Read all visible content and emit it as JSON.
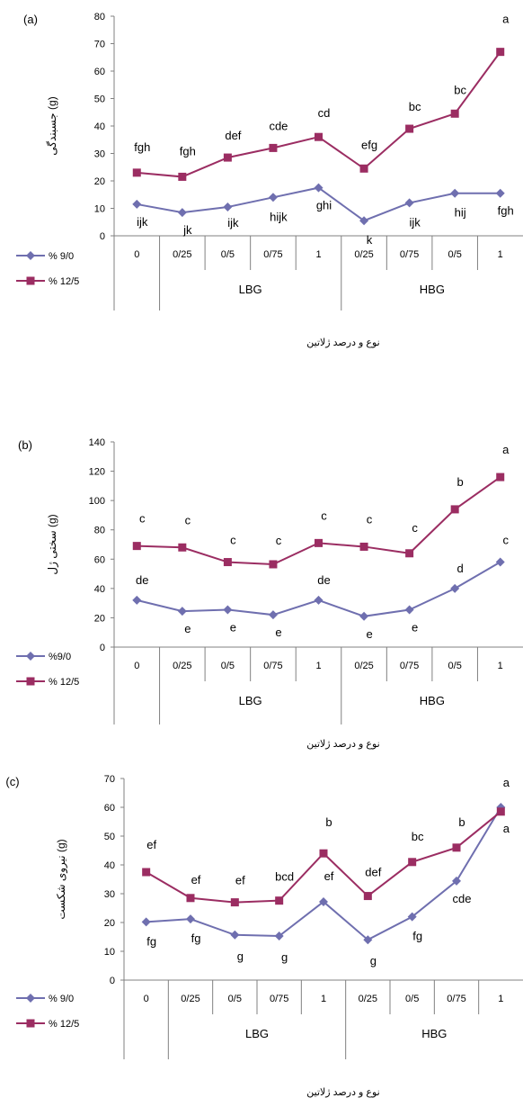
{
  "chart_data": [
    {
      "type": "line",
      "panel_label": "(a)",
      "ylabel": "جسبندگی (g)",
      "xlabel": "نوع و درصد ژلاتین",
      "ylim": [
        0,
        80
      ],
      "yticks": [
        0,
        10,
        20,
        30,
        40,
        50,
        60,
        70,
        80
      ],
      "categories": [
        "0",
        "0/25",
        "0/5",
        "0/75",
        "1",
        "0/25",
        "0/75",
        "0/5",
        "1"
      ],
      "groups": [
        {
          "label": "LBG",
          "start": 1,
          "end": 4
        },
        {
          "label": "HBG",
          "start": 5,
          "end": 8
        }
      ],
      "series": [
        {
          "name": "% 9/0",
          "color": "#6F6FAF",
          "marker": "diamond",
          "values": [
            11.5,
            8.5,
            10.5,
            14,
            17.5,
            5.5,
            12,
            15.5,
            15.5
          ],
          "labels": [
            "ijk",
            "jk",
            "ijk",
            "hijk",
            "ghi",
            "k",
            "ijk",
            "hij",
            "fgh"
          ]
        },
        {
          "name": "% 12/5",
          "color": "#9B2D62",
          "marker": "square",
          "values": [
            23,
            21.5,
            28.5,
            32,
            36,
            24.5,
            39,
            44.5,
            67
          ],
          "labels": [
            "fgh",
            "fgh",
            "def",
            "cde",
            "cd",
            "efg",
            "bc",
            "bc",
            "a"
          ]
        }
      ],
      "legend_position": "left"
    },
    {
      "type": "line",
      "panel_label": "(b)",
      "ylabel": "سختی ژل (g)",
      "xlabel": "نوع و درصد ژلاتین",
      "ylim": [
        0,
        140
      ],
      "yticks": [
        0,
        20,
        40,
        60,
        80,
        100,
        120,
        140
      ],
      "categories": [
        "0",
        "0/25",
        "0/5",
        "0/75",
        "1",
        "0/25",
        "0/75",
        "0/5",
        "1"
      ],
      "groups": [
        {
          "label": "LBG",
          "start": 1,
          "end": 4
        },
        {
          "label": "HBG",
          "start": 5,
          "end": 8
        }
      ],
      "series": [
        {
          "name": "%9/0",
          "color": "#6F6FAF",
          "marker": "diamond",
          "values": [
            32,
            24.5,
            25.5,
            22,
            32,
            21,
            25.5,
            40,
            58
          ],
          "labels": [
            "de",
            "e",
            "e",
            "e",
            "de",
            "e",
            "e",
            "d",
            "c"
          ]
        },
        {
          "name": "% 12/5",
          "color": "#9B2D62",
          "marker": "square",
          "values": [
            69,
            68,
            58,
            56.5,
            71,
            68.5,
            64,
            94,
            116
          ],
          "labels": [
            "c",
            "c",
            "c",
            "c",
            "c",
            "c",
            "c",
            "b",
            "a"
          ]
        }
      ],
      "legend_position": "left"
    },
    {
      "type": "line",
      "panel_label": "(c)",
      "ylabel": "نیروی شکست (g)",
      "xlabel": "نوع و درصد ژلاتین",
      "ylim": [
        0,
        70
      ],
      "yticks": [
        0,
        10,
        20,
        30,
        40,
        50,
        60,
        70
      ],
      "categories": [
        "0",
        "0/25",
        "0/5",
        "0/75",
        "1",
        "0/25",
        "0/5",
        "0/75",
        "1"
      ],
      "groups": [
        {
          "label": "LBG",
          "start": 1,
          "end": 4
        },
        {
          "label": "HBG",
          "start": 5,
          "end": 8
        }
      ],
      "series": [
        {
          "name": "% 9/0",
          "color": "#6F6FAF",
          "marker": "diamond",
          "values": [
            20.2,
            21.2,
            15.7,
            15.3,
            27.2,
            14,
            22,
            34.4,
            60
          ],
          "labels": [
            "fg",
            "fg",
            "g",
            "g",
            "ef",
            "g",
            "fg",
            "cde",
            "a"
          ]
        },
        {
          "name": "% 12/5",
          "color": "#9B2D62",
          "marker": "square",
          "values": [
            37.5,
            28.5,
            27,
            27.6,
            44,
            29.2,
            41,
            46,
            58.5
          ],
          "labels": [
            "ef",
            "ef",
            "ef",
            "bcd",
            "b",
            "def",
            "bc",
            "b",
            "a"
          ]
        }
      ],
      "legend_position": "left"
    }
  ]
}
